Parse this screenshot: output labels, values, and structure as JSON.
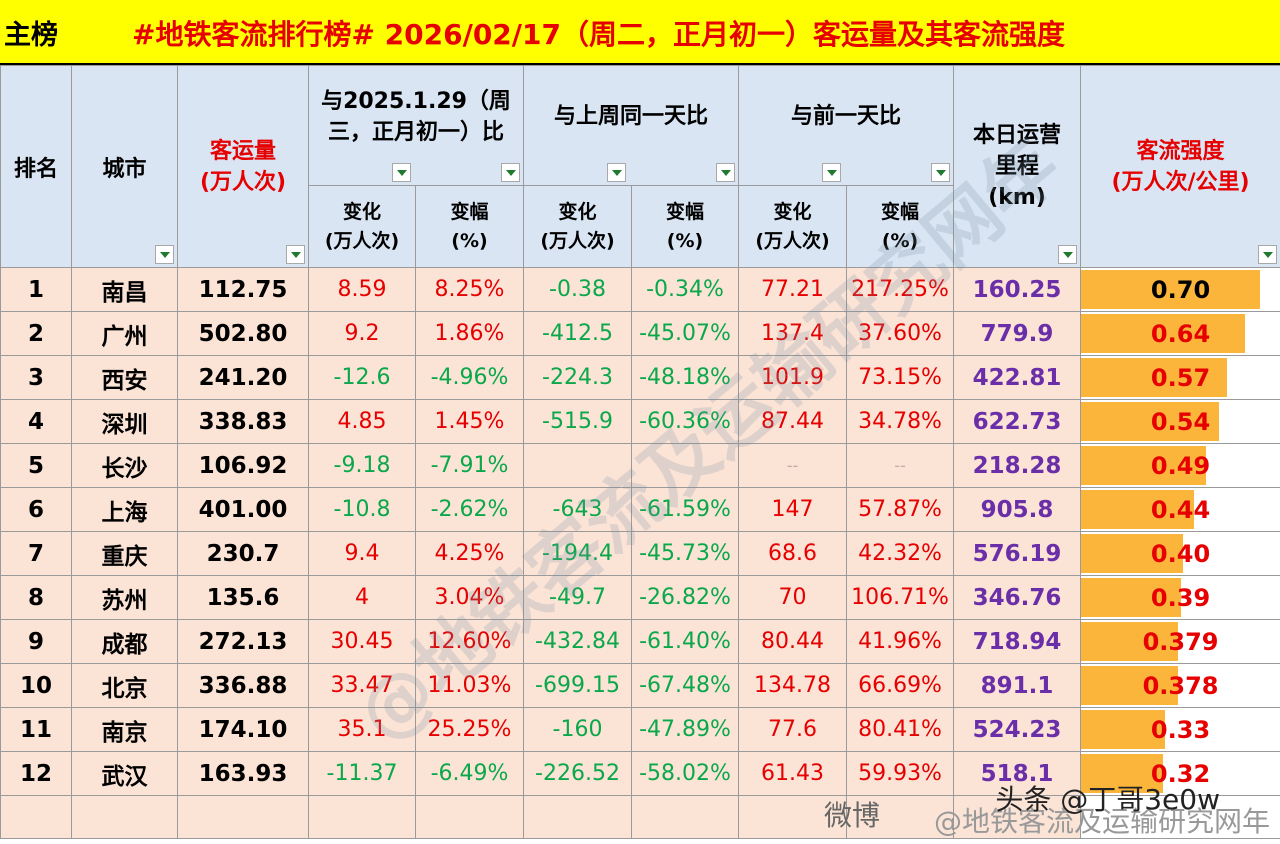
{
  "title": {
    "tag": "主榜",
    "text": "#地铁客流排行榜# 2026/02/17（周二，正月初一）客运量及其客流强度"
  },
  "headers": {
    "rank": "排名",
    "city": "城市",
    "volume_line1": "客运量",
    "volume_line2": "(万人次)",
    "group_ly": "与2025.1.29（周三，正月初一）比",
    "group_lw": "与上周同一天比",
    "group_pd": "与前一天比",
    "change": "变化\n(万人次)",
    "pct": "变幅\n(%)",
    "km": "本日运营\n里程\n(km)",
    "intensity": "客流强度\n(万人次/公里)"
  },
  "rows": [
    {
      "rank": "1",
      "city": "南昌",
      "volume": "112.75",
      "ly_change": "8.59",
      "ly_pct": "8.25%",
      "lw_change": "-0.38",
      "lw_pct": "-0.34%",
      "pd_change": "77.21",
      "pd_pct": "217.25%",
      "km": "160.25",
      "intensity": "0.70",
      "intensity_value": 0.7
    },
    {
      "rank": "2",
      "city": "广州",
      "volume": "502.80",
      "ly_change": "9.2",
      "ly_pct": "1.86%",
      "lw_change": "-412.5",
      "lw_pct": "-45.07%",
      "pd_change": "137.4",
      "pd_pct": "37.60%",
      "km": "779.9",
      "intensity": "0.64",
      "intensity_value": 0.64
    },
    {
      "rank": "3",
      "city": "西安",
      "volume": "241.20",
      "ly_change": "-12.6",
      "ly_pct": "-4.96%",
      "lw_change": "-224.3",
      "lw_pct": "-48.18%",
      "pd_change": "101.9",
      "pd_pct": "73.15%",
      "km": "422.81",
      "intensity": "0.57",
      "intensity_value": 0.57
    },
    {
      "rank": "4",
      "city": "深圳",
      "volume": "338.83",
      "ly_change": "4.85",
      "ly_pct": "1.45%",
      "lw_change": "-515.9",
      "lw_pct": "-60.36%",
      "pd_change": "87.44",
      "pd_pct": "34.78%",
      "km": "622.73",
      "intensity": "0.54",
      "intensity_value": 0.54
    },
    {
      "rank": "5",
      "city": "长沙",
      "volume": "106.92",
      "ly_change": "-9.18",
      "ly_pct": "-7.91%",
      "lw_change": "",
      "lw_pct": "",
      "pd_change": "--",
      "pd_pct": "--",
      "km": "218.28",
      "intensity": "0.49",
      "intensity_value": 0.49
    },
    {
      "rank": "6",
      "city": "上海",
      "volume": "401.00",
      "ly_change": "-10.8",
      "ly_pct": "-2.62%",
      "lw_change": "-643",
      "lw_pct": "-61.59%",
      "pd_change": "147",
      "pd_pct": "57.87%",
      "km": "905.8",
      "intensity": "0.44",
      "intensity_value": 0.44
    },
    {
      "rank": "7",
      "city": "重庆",
      "volume": "230.7",
      "ly_change": "9.4",
      "ly_pct": "4.25%",
      "lw_change": "-194.4",
      "lw_pct": "-45.73%",
      "pd_change": "68.6",
      "pd_pct": "42.32%",
      "km": "576.19",
      "intensity": "0.40",
      "intensity_value": 0.4
    },
    {
      "rank": "8",
      "city": "苏州",
      "volume": "135.6",
      "ly_change": "4",
      "ly_pct": "3.04%",
      "lw_change": "-49.7",
      "lw_pct": "-26.82%",
      "pd_change": "70",
      "pd_pct": "106.71%",
      "km": "346.76",
      "intensity": "0.39",
      "intensity_value": 0.39
    },
    {
      "rank": "9",
      "city": "成都",
      "volume": "272.13",
      "ly_change": "30.45",
      "ly_pct": "12.60%",
      "lw_change": "-432.84",
      "lw_pct": "-61.40%",
      "pd_change": "80.44",
      "pd_pct": "41.96%",
      "km": "718.94",
      "intensity": "0.379",
      "intensity_value": 0.379
    },
    {
      "rank": "10",
      "city": "北京",
      "volume": "336.88",
      "ly_change": "33.47",
      "ly_pct": "11.03%",
      "lw_change": "-699.15",
      "lw_pct": "-67.48%",
      "pd_change": "134.78",
      "pd_pct": "66.69%",
      "km": "891.1",
      "intensity": "0.378",
      "intensity_value": 0.378
    },
    {
      "rank": "11",
      "city": "南京",
      "volume": "174.10",
      "ly_change": "35.1",
      "ly_pct": "25.25%",
      "lw_change": "-160",
      "lw_pct": "-47.89%",
      "pd_change": "77.6",
      "pd_pct": "80.41%",
      "km": "524.23",
      "intensity": "0.33",
      "intensity_value": 0.33
    },
    {
      "rank": "12",
      "city": "武汉",
      "volume": "163.93",
      "ly_change": "-11.37",
      "ly_pct": "-6.49%",
      "lw_change": "-226.52",
      "lw_pct": "-58.02%",
      "pd_change": "61.43",
      "pd_pct": "59.93%",
      "km": "518.1",
      "intensity": "0.32",
      "intensity_value": 0.32
    }
  ],
  "bar_scale_max": 0.7,
  "colors": {
    "title_bg": "#ffff00",
    "title_text": "#e60000",
    "header_bg": "#d9e5f3",
    "row_bg": "#fbe3d6",
    "positive": "#e60000",
    "negative": "#0aa84b",
    "km": "#6a2fa8",
    "bar": "#fbb53b"
  },
  "watermark": {
    "diagonal": "@地铁客流及运输研究网年",
    "weibo_prefix": "微博",
    "footer_main": "@地铁客流及运输研究网年",
    "footer_overlay": "头条 @丁哥3e0w"
  }
}
